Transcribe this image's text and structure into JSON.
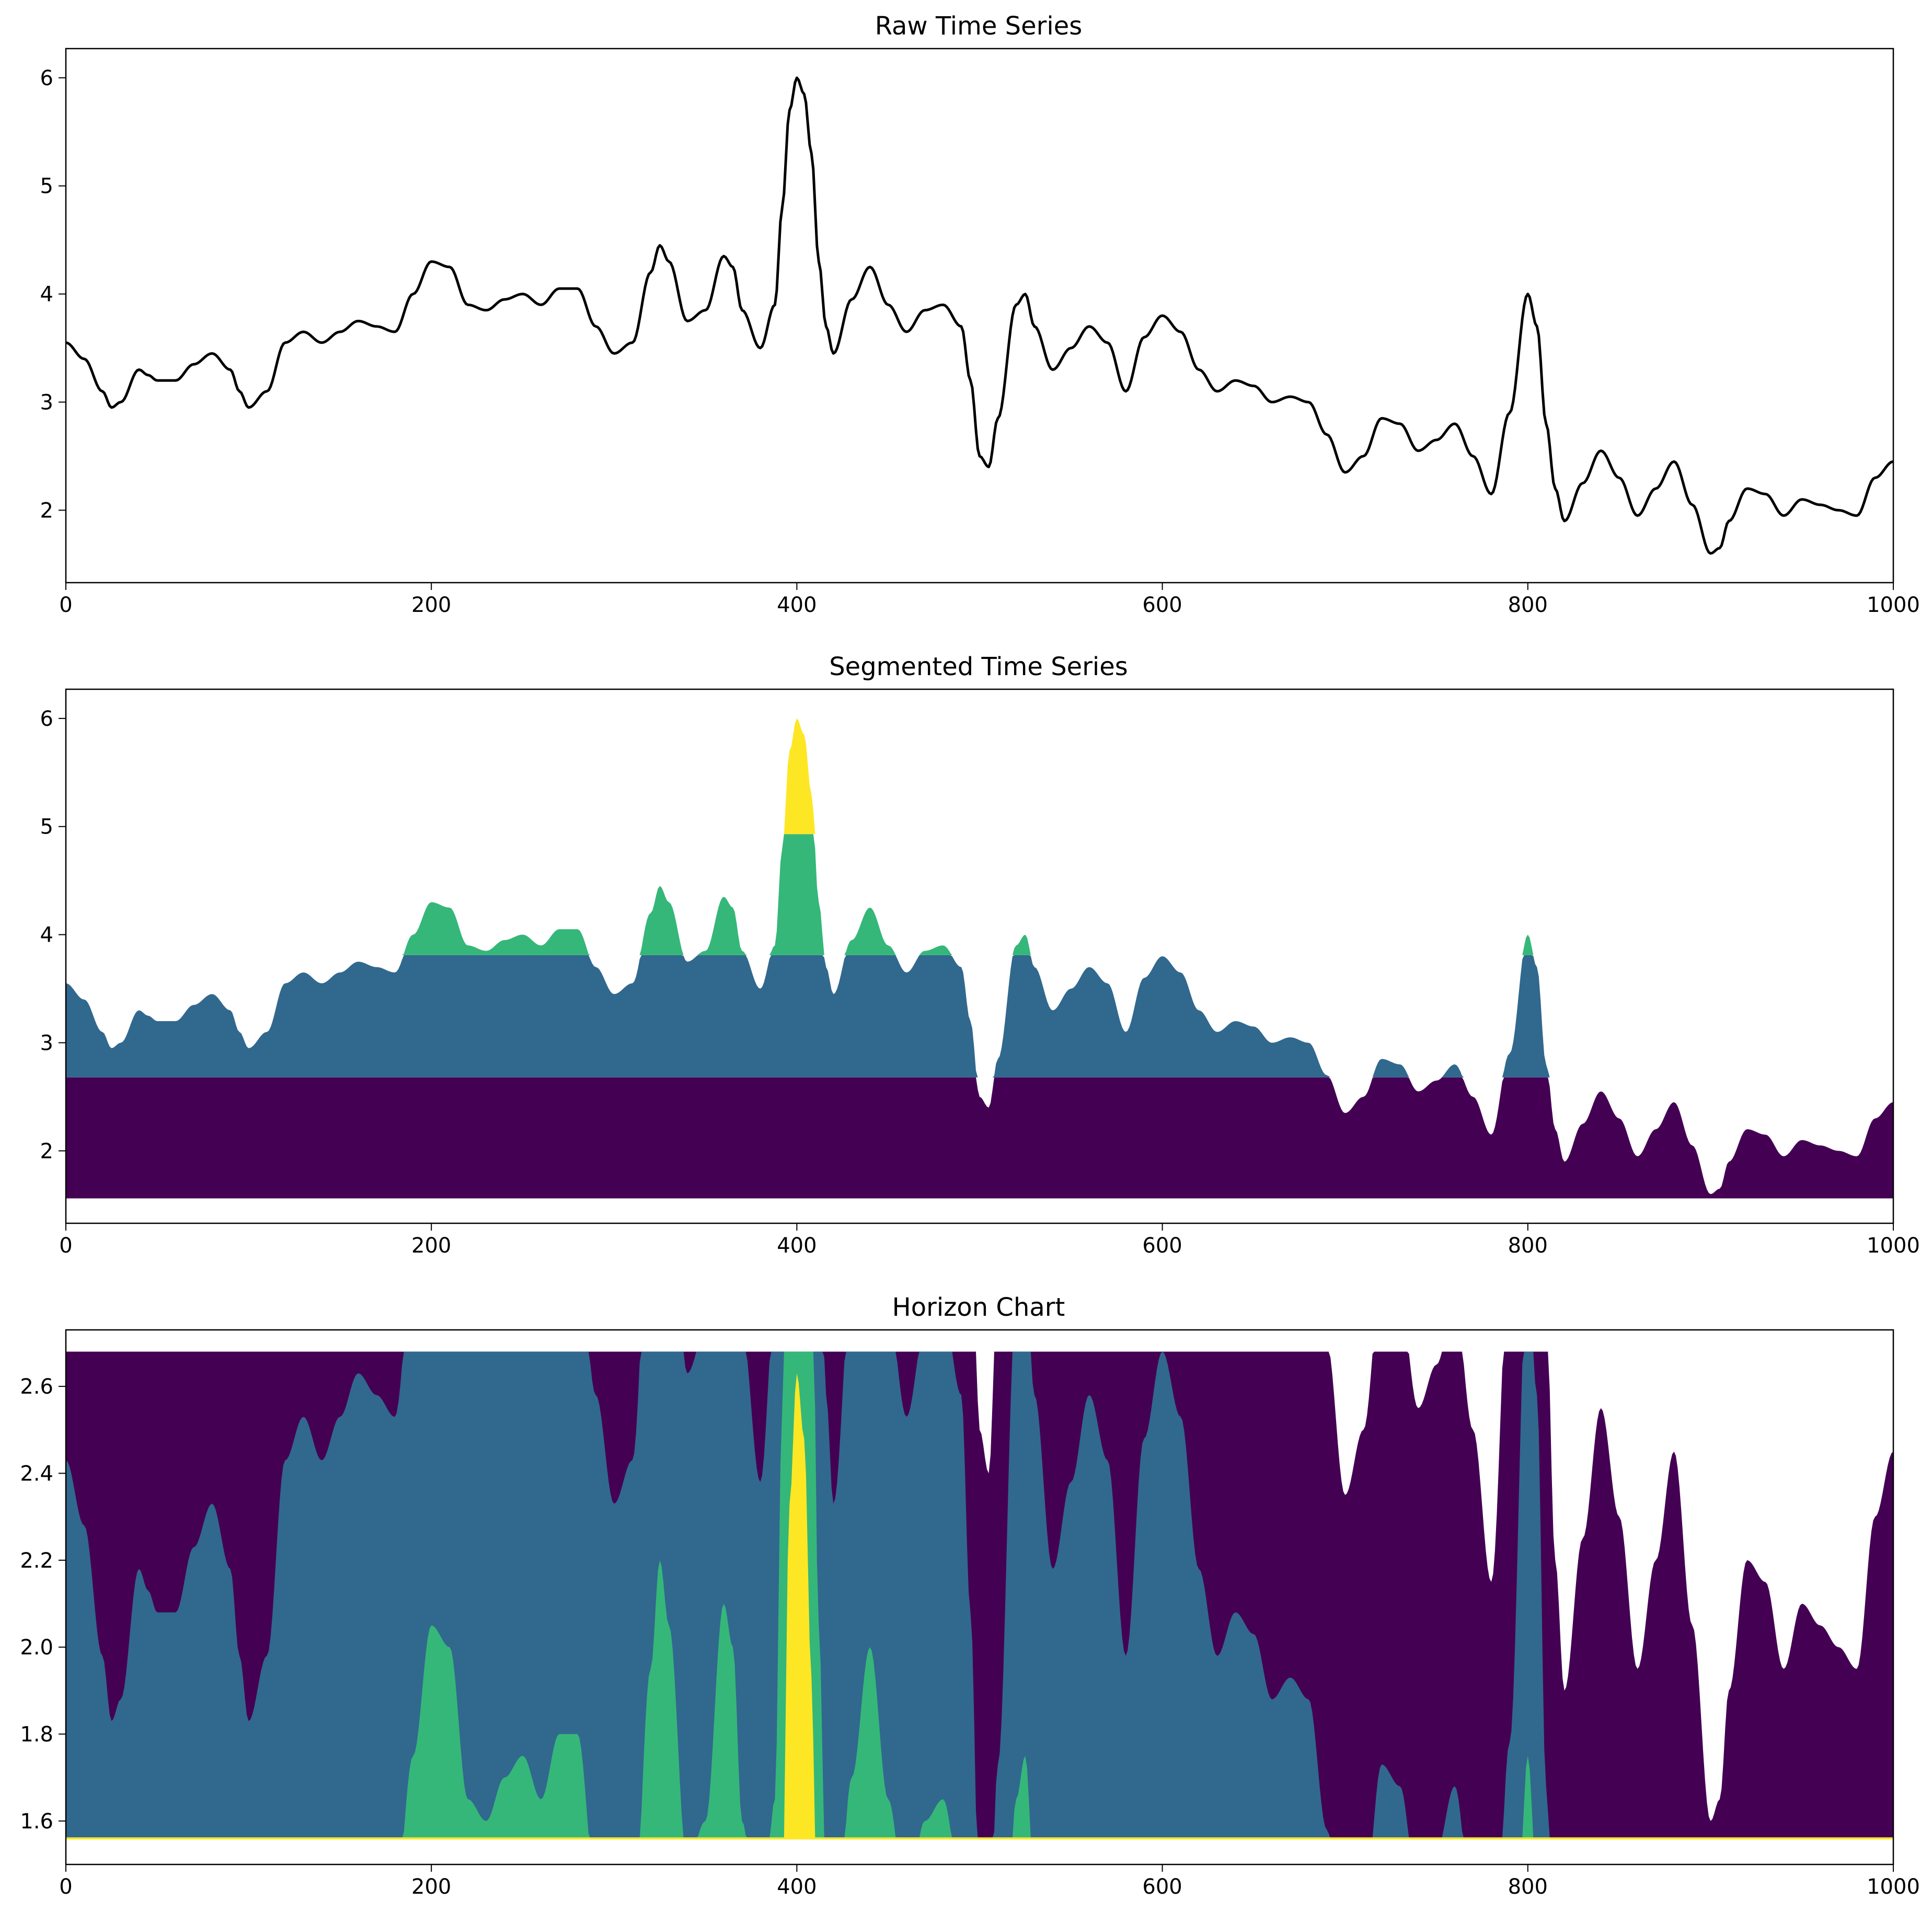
{
  "chart_data": [
    {
      "type": "line",
      "title": "Raw Time Series",
      "xlabel": "",
      "ylabel": "",
      "xlim": [
        0,
        1000
      ],
      "ylim": [
        1.33,
        6.27
      ],
      "xticks": [
        0,
        200,
        400,
        600,
        800,
        1000
      ],
      "yticks": [
        2,
        3,
        4,
        5,
        6
      ],
      "grid": false,
      "legend": "none",
      "series": [
        {
          "name": "series",
          "color": "#000000",
          "points": [
            [
              0,
              3.55
            ],
            [
              10,
              3.4
            ],
            [
              20,
              3.1
            ],
            [
              25,
              2.95
            ],
            [
              30,
              3.0
            ],
            [
              40,
              3.3
            ],
            [
              45,
              3.25
            ],
            [
              50,
              3.2
            ],
            [
              60,
              3.2
            ],
            [
              70,
              3.35
            ],
            [
              80,
              3.45
            ],
            [
              90,
              3.3
            ],
            [
              95,
              3.1
            ],
            [
              100,
              2.95
            ],
            [
              110,
              3.1
            ],
            [
              120,
              3.55
            ],
            [
              130,
              3.65
            ],
            [
              140,
              3.55
            ],
            [
              150,
              3.65
            ],
            [
              160,
              3.75
            ],
            [
              170,
              3.7
            ],
            [
              180,
              3.65
            ],
            [
              190,
              4.0
            ],
            [
              200,
              4.3
            ],
            [
              210,
              4.25
            ],
            [
              220,
              3.9
            ],
            [
              230,
              3.85
            ],
            [
              240,
              3.95
            ],
            [
              250,
              4.0
            ],
            [
              260,
              3.9
            ],
            [
              270,
              4.05
            ],
            [
              280,
              4.05
            ],
            [
              290,
              3.7
            ],
            [
              300,
              3.45
            ],
            [
              310,
              3.55
            ],
            [
              320,
              4.2
            ],
            [
              325,
              4.45
            ],
            [
              330,
              4.3
            ],
            [
              340,
              3.75
            ],
            [
              350,
              3.85
            ],
            [
              360,
              4.35
            ],
            [
              365,
              4.25
            ],
            [
              370,
              3.85
            ],
            [
              380,
              3.5
            ],
            [
              388,
              3.9
            ],
            [
              392,
              4.8
            ],
            [
              396,
              5.7
            ],
            [
              400,
              6.0
            ],
            [
              404,
              5.85
            ],
            [
              408,
              5.3
            ],
            [
              412,
              4.3
            ],
            [
              416,
              3.7
            ],
            [
              420,
              3.45
            ],
            [
              430,
              3.95
            ],
            [
              440,
              4.25
            ],
            [
              450,
              3.9
            ],
            [
              460,
              3.65
            ],
            [
              470,
              3.85
            ],
            [
              480,
              3.9
            ],
            [
              490,
              3.7
            ],
            [
              495,
              3.2
            ],
            [
              500,
              2.5
            ],
            [
              505,
              2.4
            ],
            [
              510,
              2.85
            ],
            [
              520,
              3.9
            ],
            [
              525,
              4.0
            ],
            [
              530,
              3.7
            ],
            [
              540,
              3.3
            ],
            [
              550,
              3.5
            ],
            [
              560,
              3.7
            ],
            [
              570,
              3.55
            ],
            [
              580,
              3.1
            ],
            [
              590,
              3.6
            ],
            [
              600,
              3.8
            ],
            [
              610,
              3.65
            ],
            [
              620,
              3.3
            ],
            [
              630,
              3.1
            ],
            [
              640,
              3.2
            ],
            [
              650,
              3.15
            ],
            [
              660,
              3.0
            ],
            [
              670,
              3.05
            ],
            [
              680,
              3.0
            ],
            [
              690,
              2.7
            ],
            [
              700,
              2.35
            ],
            [
              710,
              2.5
            ],
            [
              720,
              2.85
            ],
            [
              730,
              2.8
            ],
            [
              740,
              2.55
            ],
            [
              750,
              2.65
            ],
            [
              760,
              2.8
            ],
            [
              770,
              2.5
            ],
            [
              780,
              2.15
            ],
            [
              790,
              2.9
            ],
            [
              800,
              4.0
            ],
            [
              805,
              3.7
            ],
            [
              810,
              2.8
            ],
            [
              815,
              2.2
            ],
            [
              820,
              1.9
            ],
            [
              830,
              2.25
            ],
            [
              840,
              2.55
            ],
            [
              850,
              2.3
            ],
            [
              860,
              1.95
            ],
            [
              870,
              2.2
            ],
            [
              880,
              2.45
            ],
            [
              890,
              2.05
            ],
            [
              900,
              1.6
            ],
            [
              905,
              1.65
            ],
            [
              910,
              1.9
            ],
            [
              920,
              2.2
            ],
            [
              930,
              2.15
            ],
            [
              940,
              1.95
            ],
            [
              950,
              2.1
            ],
            [
              960,
              2.05
            ],
            [
              970,
              2.0
            ],
            [
              980,
              1.95
            ],
            [
              990,
              2.3
            ],
            [
              1000,
              2.45
            ]
          ]
        }
      ]
    },
    {
      "type": "area",
      "title": "Segmented Time Series",
      "xlabel": "",
      "ylabel": "",
      "xlim": [
        0,
        1000
      ],
      "ylim": [
        1.33,
        6.27
      ],
      "xticks": [
        0,
        200,
        400,
        600,
        800,
        1000
      ],
      "yticks": [
        2,
        3,
        4,
        5,
        6
      ],
      "grid": false,
      "legend": "none",
      "baseline": 1.56,
      "bands": [
        {
          "name": "band-1",
          "lower": 1.56,
          "upper": 2.68,
          "color": "#440154"
        },
        {
          "name": "band-2",
          "lower": 2.68,
          "upper": 3.81,
          "color": "#31688e"
        },
        {
          "name": "band-3",
          "lower": 3.81,
          "upper": 4.93,
          "color": "#35b779"
        },
        {
          "name": "band-4",
          "lower": 4.93,
          "upper": 6.05,
          "color": "#fde725"
        }
      ],
      "source": "Raw Time Series"
    },
    {
      "type": "area",
      "title": "Horizon Chart",
      "xlabel": "",
      "ylabel": "",
      "xlim": [
        0,
        1000
      ],
      "ylim": [
        1.5,
        2.73
      ],
      "xticks": [
        0,
        200,
        400,
        600,
        800,
        1000
      ],
      "yticks": [
        1.6,
        1.8,
        2.0,
        2.2,
        2.4,
        2.6
      ],
      "grid": false,
      "legend": "none",
      "baseline": 1.56,
      "band_height": 1.12,
      "bands": [
        {
          "name": "band-1",
          "offset": 0,
          "color": "#440154"
        },
        {
          "name": "band-2",
          "offset": 1.12,
          "color": "#31688e"
        },
        {
          "name": "band-3",
          "offset": 2.25,
          "color": "#35b779"
        },
        {
          "name": "band-4",
          "offset": 3.37,
          "color": "#fde725"
        }
      ],
      "source": "Raw Time Series"
    }
  ]
}
